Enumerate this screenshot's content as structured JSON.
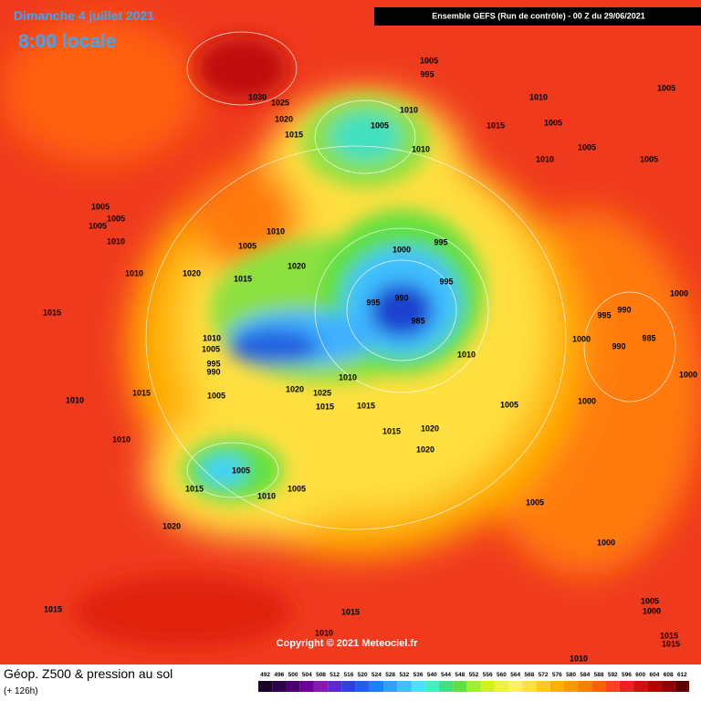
{
  "header": {
    "date": "Dimanche 4 juillet 2021",
    "time": "8:00 locale",
    "model": "Ensemble GEFS  (Run de contrôle)  - 00 Z du 29/06/2021"
  },
  "footer": {
    "title": "Géop. Z500 & pression au sol",
    "lead": "(+ 126h)",
    "copyright": "Copyright © 2021 Meteociel.fr"
  },
  "scale": {
    "ticks": [
      492,
      496,
      500,
      504,
      508,
      512,
      516,
      520,
      524,
      528,
      532,
      536,
      540,
      544,
      548,
      552,
      556,
      560,
      564,
      568,
      572,
      576,
      580,
      584,
      588,
      592,
      596,
      600,
      604,
      608,
      612
    ],
    "colors": [
      "#1a0026",
      "#2e004a",
      "#4a0070",
      "#6a0096",
      "#8a1ab4",
      "#5a2ad0",
      "#3040e0",
      "#2060f0",
      "#1a80ff",
      "#30a0ff",
      "#40c0ff",
      "#50e0ff",
      "#40f0c0",
      "#40e080",
      "#60e040",
      "#a0f030",
      "#d0f020",
      "#f0f040",
      "#fff060",
      "#ffe040",
      "#ffc820",
      "#ffb000",
      "#ff9800",
      "#ff8000",
      "#ff6000",
      "#ff4020",
      "#f02020",
      "#d01010",
      "#b00000",
      "#900000",
      "#600000"
    ]
  },
  "isobar_labels": [
    "1005",
    "995",
    "1030",
    "1025",
    "1020",
    "1015",
    "1005",
    "1010",
    "1010",
    "1010",
    "1005",
    "1015",
    "1005",
    "1005",
    "1010",
    "1005",
    "1005",
    "1005",
    "1005",
    "1010",
    "1010",
    "1020",
    "1005",
    "1010",
    "1015",
    "1020",
    "1000",
    "995",
    "995",
    "995",
    "990",
    "985",
    "1015",
    "1010",
    "1005",
    "995",
    "990",
    "1010",
    "1010",
    "1000",
    "995",
    "990",
    "985",
    "1000",
    "990",
    "1000",
    "1005",
    "1000",
    "1010",
    "1015",
    "1005",
    "1020",
    "1025",
    "1015",
    "1015",
    "1015",
    "1020",
    "1020",
    "1010",
    "1005",
    "1010",
    "1005",
    "1015",
    "1005",
    "1020",
    "1000",
    "1015",
    "1015",
    "1005",
    "1000",
    "1010",
    "1015",
    "1015",
    "1010"
  ]
}
